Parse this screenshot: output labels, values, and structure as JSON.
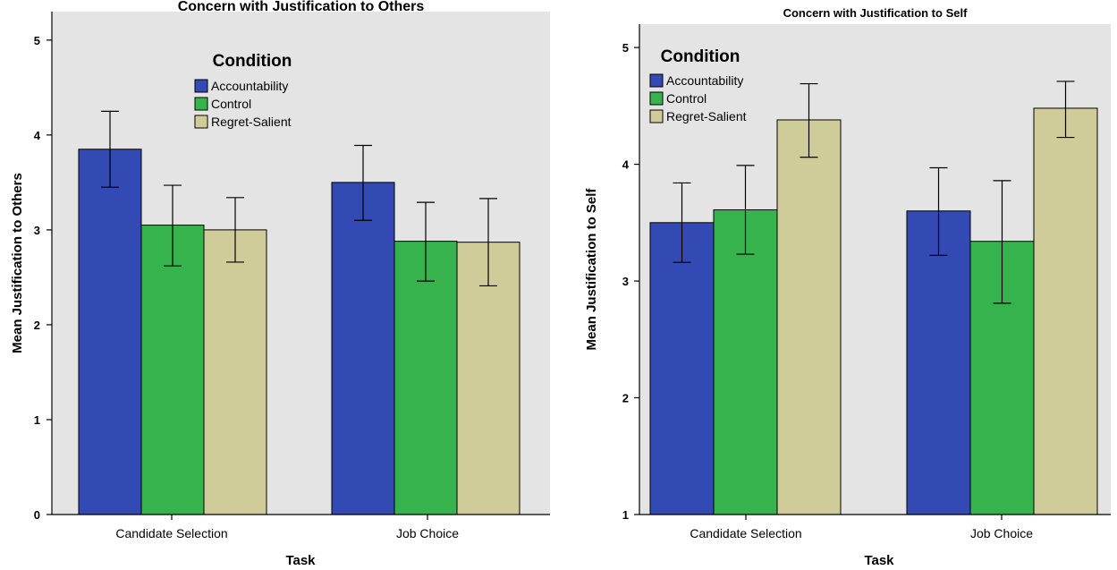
{
  "chart_data": [
    {
      "type": "bar",
      "title": "Concern with Justification to Others",
      "xlabel": "Task",
      "ylabel": "Mean Justification to Others",
      "ylim": [
        0,
        5.3
      ],
      "yticks": [
        0,
        1,
        2,
        3,
        4,
        5
      ],
      "categories": [
        "Candidate Selection",
        "Job Choice"
      ],
      "legend_title": "Condition",
      "legend_position": "top-center",
      "series": [
        {
          "name": "Accountability",
          "color": "#3349b4",
          "values": [
            3.85,
            3.5
          ],
          "err_low": [
            3.45,
            3.1
          ],
          "err_high": [
            4.25,
            3.89
          ]
        },
        {
          "name": "Control",
          "color": "#37b34d",
          "values": [
            3.05,
            2.88
          ],
          "err_low": [
            2.62,
            2.46
          ],
          "err_high": [
            3.47,
            3.29
          ]
        },
        {
          "name": "Regret-Salient",
          "color": "#cfcc9a",
          "values": [
            3.0,
            2.87
          ],
          "err_low": [
            2.66,
            2.41
          ],
          "err_high": [
            3.34,
            3.33
          ]
        }
      ]
    },
    {
      "type": "bar",
      "title": "Concern with Justification to Self",
      "xlabel": "Task",
      "ylabel": "Mean Justification to Self",
      "ylim": [
        1,
        5.2
      ],
      "yticks": [
        1,
        2,
        3,
        4,
        5
      ],
      "categories": [
        "Candidate Selection",
        "Job Choice"
      ],
      "legend_title": "Condition",
      "legend_position": "top-left",
      "series": [
        {
          "name": "Accountability",
          "color": "#3349b4",
          "values": [
            3.5,
            3.6
          ],
          "err_low": [
            3.16,
            3.22
          ],
          "err_high": [
            3.84,
            3.97
          ]
        },
        {
          "name": "Control",
          "color": "#37b34d",
          "values": [
            3.61,
            3.34
          ],
          "err_low": [
            3.23,
            2.81
          ],
          "err_high": [
            3.99,
            3.86
          ]
        },
        {
          "name": "Regret-Salient",
          "color": "#cfcc9a",
          "values": [
            4.38,
            4.48
          ],
          "err_low": [
            4.06,
            4.23
          ],
          "err_high": [
            4.69,
            4.71
          ]
        }
      ]
    }
  ]
}
